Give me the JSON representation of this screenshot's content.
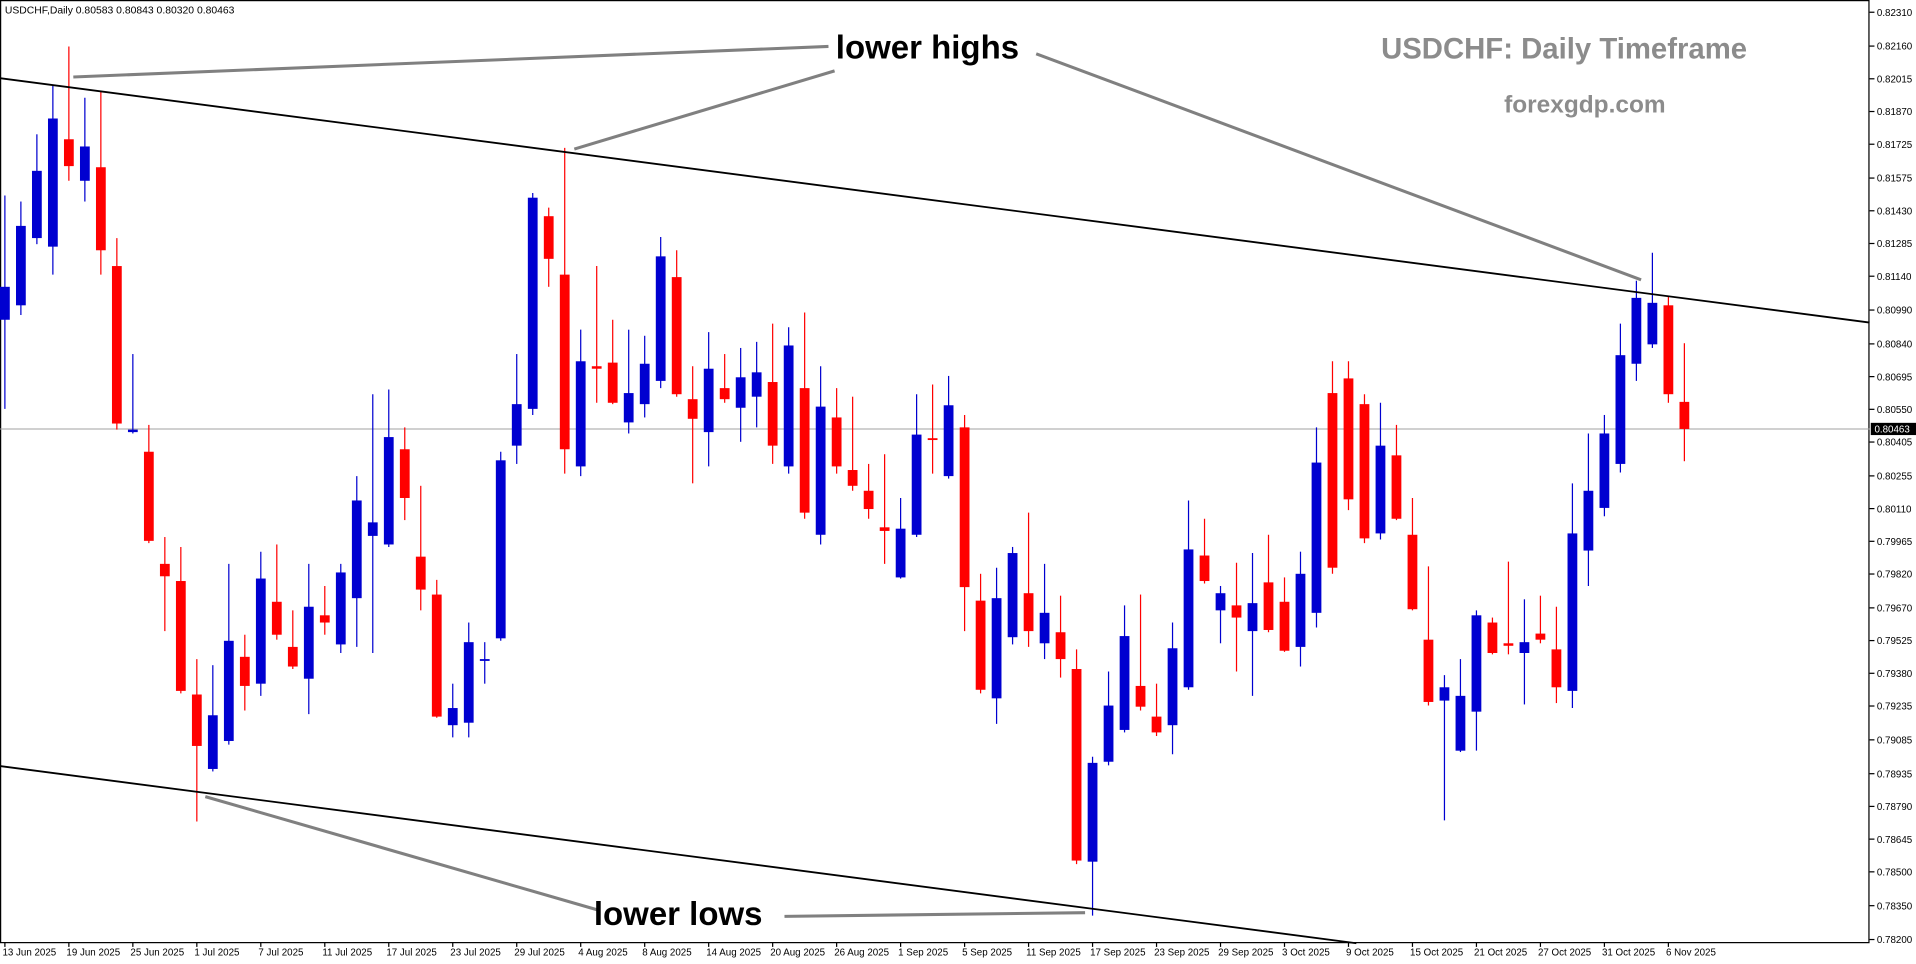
{
  "chart_data": {
    "type": "candlestick",
    "header": "USDCHF,Daily  0.80583 0.80843 0.80320 0.80463",
    "title": "USDCHF: Daily Timeframe",
    "subtitle": "forexgdp.com",
    "annotations": [
      "lower highs",
      "lower lows"
    ],
    "bull_color": "#0000d0",
    "bear_color": "#ff0000",
    "categories": [
      "13 Jun 2025",
      null,
      null,
      null,
      "19 Jun 2025",
      null,
      null,
      null,
      "25 Jun 2025",
      null,
      null,
      null,
      "1 Jul 2025",
      null,
      null,
      null,
      "7 Jul 2025",
      null,
      null,
      null,
      "11 Jul 2025",
      null,
      null,
      null,
      "17 Jul 2025",
      null,
      null,
      null,
      "23 Jul 2025",
      null,
      null,
      null,
      "29 Jul 2025",
      null,
      null,
      null,
      "4 Aug 2025",
      null,
      null,
      null,
      "8 Aug 2025",
      null,
      null,
      null,
      "14 Aug 2025",
      null,
      null,
      null,
      "20 Aug 2025",
      null,
      null,
      null,
      "26 Aug 2025",
      null,
      null,
      null,
      "1 Sep 2025",
      null,
      null,
      null,
      "5 Sep 2025",
      null,
      null,
      null,
      "11 Sep 2025",
      null,
      null,
      null,
      "17 Sep 2025",
      null,
      null,
      null,
      "23 Sep 2025",
      null,
      null,
      null,
      "29 Sep 2025",
      null,
      null,
      null,
      "3 Oct 2025",
      null,
      null,
      null,
      "9 Oct 2025",
      null,
      null,
      null,
      "15 Oct 2025",
      null,
      null,
      null,
      "21 Oct 2025",
      null,
      null,
      null,
      "27 Oct 2025",
      null,
      null,
      null,
      "31 Oct 2025",
      null,
      null,
      null,
      "6 Nov 2025",
      null
    ],
    "open": [
      0.80947,
      0.81011,
      0.81309,
      0.81271,
      0.81747,
      0.81563,
      0.81623,
      0.81185,
      0.80449,
      0.80362,
      0.79865,
      0.79789,
      0.79286,
      0.78956,
      0.7908,
      0.79453,
      0.79334,
      0.79697,
      0.79497,
      0.79356,
      0.79637,
      0.79508,
      0.79713,
      0.79989,
      0.79951,
      0.80373,
      0.79897,
      0.79729,
      0.7915,
      0.79161,
      0.79443,
      0.79535,
      0.80389,
      0.80552,
      0.81406,
      0.81147,
      0.80297,
      0.80741,
      0.80757,
      0.80492,
      0.80573,
      0.80676,
      0.81136,
      0.80595,
      0.80449,
      0.80644,
      0.80557,
      0.80606,
      0.80671,
      0.80297,
      0.80644,
      0.79994,
      0.80514,
      0.80281,
      0.80189,
      0.80027,
      0.79805,
      0.79994,
      0.80422,
      0.80254,
      0.8047,
      0.79702,
      0.79269,
      0.7954,
      0.79735,
      0.79513,
      0.79562,
      0.79399,
      0.78545,
      0.78988,
      0.79129,
      0.79324,
      0.79188,
      0.7915,
      0.79318,
      0.79902,
      0.79659,
      0.79681,
      0.79567,
      0.79783,
      0.79697,
      0.79497,
      0.79648,
      0.80622,
      0.80687,
      0.80573,
      0.8,
      0.80346,
      0.79994,
      0.79529,
      0.79259,
      0.79037,
      0.7921,
      0.79605,
      0.79513,
      0.7947,
      0.79556,
      0.79486,
      0.79302,
      0.79924,
      0.80113,
      0.80308,
      0.80752,
      0.80838,
      0.81011,
      0.80583
    ],
    "high": [
      0.81498,
      0.81471,
      0.81769,
      0.81985,
      0.82158,
      0.81931,
      0.81958,
      0.81309,
      0.80795,
      0.80481,
      0.79984,
      0.7994,
      0.79443,
      0.79416,
      0.79865,
      0.79551,
      0.79919,
      0.79951,
      0.79659,
      0.79865,
      0.79767,
      0.79865,
      0.80254,
      0.80617,
      0.80638,
      0.8047,
      0.80211,
      0.79794,
      0.79334,
      0.79605,
      0.79518,
      0.80362,
      0.80795,
      0.81509,
      0.81444,
      0.81709,
      0.80903,
      0.81185,
      0.80947,
      0.80903,
      0.80876,
      0.81314,
      0.81255,
      0.80741,
      0.80892,
      0.80795,
      0.80822,
      0.80849,
      0.8093,
      0.80914,
      0.80979,
      0.80741,
      0.80644,
      0.80606,
      0.80308,
      0.80351,
      0.80157,
      0.80617,
      0.8066,
      0.80698,
      0.80525,
      0.79821,
      0.79848,
      0.7994,
      0.80092,
      0.79865,
      0.79724,
      0.79486,
      0.7901,
      0.79388,
      0.79681,
      0.79729,
      0.79334,
      0.79605,
      0.80146,
      0.80065,
      0.79767,
      0.7987,
      0.79913,
      0.79994,
      0.79805,
      0.79919,
      0.8047,
      0.80763,
      0.80763,
      0.80617,
      0.80579,
      0.80481,
      0.80157,
      0.79854,
      0.79372,
      0.79443,
      0.79659,
      0.79627,
      0.79875,
      0.79708,
      0.79724,
      0.79675,
      0.80222,
      0.80443,
      0.80525,
      0.8093,
      0.8112,
      0.81244,
      0.81049,
      0.80843
    ],
    "low": [
      0.80552,
      0.80968,
      0.81282,
      0.81147,
      0.81563,
      0.81471,
      0.81147,
      0.8046,
      0.80443,
      0.79957,
      0.79567,
      0.79291,
      0.78723,
      0.78945,
      0.79064,
      0.79215,
      0.7928,
      0.79529,
      0.79399,
      0.79199,
      0.79551,
      0.7947,
      0.79497,
      0.7947,
      0.7994,
      0.80059,
      0.79659,
      0.79183,
      0.79096,
      0.79096,
      0.79334,
      0.79524,
      0.80308,
      0.80525,
      0.81093,
      0.80265,
      0.80254,
      0.80579,
      0.80573,
      0.80443,
      0.80514,
      0.80644,
      0.80606,
      0.80222,
      0.80297,
      0.80579,
      0.80406,
      0.8047,
      0.80308,
      0.80265,
      0.80065,
      0.79951,
      0.80265,
      0.80189,
      0.80065,
      0.79865,
      0.798,
      0.79984,
      0.80265,
      0.80243,
      0.79567,
      0.79291,
      0.79156,
      0.79508,
      0.79497,
      0.79443,
      0.79361,
      0.78534,
      0.78306,
      0.78972,
      0.79118,
      0.79215,
      0.79102,
      0.79021,
      0.79307,
      0.79778,
      0.79513,
      0.79388,
      0.7928,
      0.79562,
      0.79475,
      0.7941,
      0.79583,
      0.79821,
      0.80103,
      0.79957,
      0.79973,
      0.80059,
      0.79659,
      0.79237,
      0.78728,
      0.79031,
      0.79037,
      0.79464,
      0.79464,
      0.79242,
      0.79513,
      0.79248,
      0.79226,
      0.79767,
      0.80076,
      0.8027,
      0.80676,
      0.80822,
      0.80579,
      0.8032
    ],
    "close": [
      0.81093,
      0.81363,
      0.81607,
      0.81839,
      0.81628,
      0.81715,
      0.81255,
      0.80487,
      0.8046,
      0.79967,
      0.7981,
      0.79302,
      0.79058,
      0.79194,
      0.79524,
      0.79324,
      0.798,
      0.79551,
      0.7941,
      0.79675,
      0.79605,
      0.79827,
      0.80146,
      0.80049,
      0.80427,
      0.80157,
      0.79751,
      0.79188,
      0.79226,
      0.79518,
      0.79443,
      0.80324,
      0.80573,
      0.81488,
      0.81217,
      0.80373,
      0.80763,
      0.8073,
      0.80579,
      0.80622,
      0.80752,
      0.81228,
      0.80617,
      0.80508,
      0.8073,
      0.80595,
      0.80692,
      0.80714,
      0.80389,
      0.80833,
      0.80092,
      0.80562,
      0.80297,
      0.80211,
      0.80108,
      0.80011,
      0.80021,
      0.80438,
      0.80416,
      0.80568,
      0.79762,
      0.79307,
      0.79713,
      0.79913,
      0.79567,
      0.79648,
      0.79443,
      0.7855,
      0.78983,
      0.79237,
      0.79545,
      0.79232,
      0.79118,
      0.79491,
      0.79929,
      0.79789,
      0.79735,
      0.79627,
      0.79691,
      0.79572,
      0.7948,
      0.79821,
      0.80314,
      0.79848,
      0.80151,
      0.79978,
      0.80389,
      0.80065,
      0.79664,
      0.79253,
      0.79318,
      0.7928,
      0.79637,
      0.7947,
      0.79502,
      0.79518,
      0.79529,
      0.79318,
      0.8,
      0.80189,
      0.80443,
      0.8079,
      0.81044,
      0.81022,
      0.80617,
      0.80463
    ],
    "price_label": {
      "value": 0.80463,
      "label": "0.80463"
    },
    "ylim": [
      0.78189,
      0.82348
    ],
    "yticks": [
      {
        "value": 0.782,
        "label": "0.78200"
      },
      {
        "value": 0.7835,
        "label": "0.78350"
      },
      {
        "value": 0.785,
        "label": "0.78500"
      },
      {
        "value": 0.78645,
        "label": "0.78645"
      },
      {
        "value": 0.7879,
        "label": "0.78790"
      },
      {
        "value": 0.78935,
        "label": "0.78935"
      },
      {
        "value": 0.79085,
        "label": "0.79085"
      },
      {
        "value": 0.79235,
        "label": "0.79235"
      },
      {
        "value": 0.7938,
        "label": "0.79380"
      },
      {
        "value": 0.79525,
        "label": "0.79525"
      },
      {
        "value": 0.7967,
        "label": "0.79670"
      },
      {
        "value": 0.7982,
        "label": "0.79820"
      },
      {
        "value": 0.79965,
        "label": "0.79965"
      },
      {
        "value": 0.8011,
        "label": "0.80110"
      },
      {
        "value": 0.80255,
        "label": "0.80255"
      },
      {
        "value": 0.80405,
        "label": "0.80405"
      },
      {
        "value": 0.8055,
        "label": "0.80550"
      },
      {
        "value": 0.80695,
        "label": "0.80695"
      },
      {
        "value": 0.8084,
        "label": "0.80840"
      },
      {
        "value": 0.8099,
        "label": "0.80990"
      },
      {
        "value": 0.8114,
        "label": "0.81140"
      },
      {
        "value": 0.81285,
        "label": "0.81285"
      },
      {
        "value": 0.8143,
        "label": "0.81430"
      },
      {
        "value": 0.81575,
        "label": "0.81575"
      },
      {
        "value": 0.81725,
        "label": "0.81725"
      },
      {
        "value": 0.8187,
        "label": "0.81870"
      },
      {
        "value": 0.82015,
        "label": "0.82015"
      },
      {
        "value": 0.8216,
        "label": "0.82160"
      },
      {
        "value": 0.8231,
        "label": "0.82310"
      }
    ],
    "grid": false
  }
}
